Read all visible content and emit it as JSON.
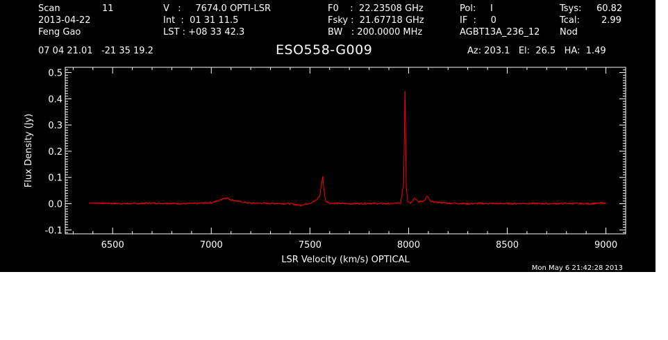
{
  "header": {
    "col1": {
      "scan_label": "Scan",
      "scan_value": "11",
      "date": "2013-04-22",
      "observer": "Feng Gao"
    },
    "col2": {
      "v_line": "V   :     7674.0 OPTI-LSR",
      "int_line": "Int  :  01 31 11.5",
      "lst_line": "LST : +08 33 42.3"
    },
    "col3": {
      "f0_line": "F0    :  22.23508 GHz",
      "fsky_line": "Fsky :  21.67718 GHz",
      "bw_line": "BW   : 200.0000 MHz"
    },
    "col4": {
      "pol_line": "Pol:     I",
      "if_line": "IF  :     0",
      "project": "AGBT13A_236_12"
    },
    "col5": {
      "tsys_label": "Tsys:",
      "tsys_value": "60.82",
      "tcal_label": "Tcal:",
      "tcal_value": "2.99",
      "mode": "Nod"
    },
    "coords": "07 04 21.01   -21 35 19.2",
    "source": "ESO558-G009",
    "azelha": "Az: 203.1   El:  26.5   HA:  1.49"
  },
  "timestamp": "Mon May  6 21:42:28 2013",
  "chart_data": {
    "type": "line",
    "title": "ESO558-G009",
    "xlabel": "LSR Velocity (km/s) OPTICAL",
    "ylabel": "Flux Density (Jy)",
    "xlim": [
      6260,
      9100
    ],
    "ylim": [
      -0.115,
      0.52
    ],
    "xticks": [
      6500,
      7000,
      7500,
      8000,
      8500,
      9000
    ],
    "yticks": [
      -0.1,
      0.0,
      0.1,
      0.2,
      0.3,
      0.4,
      0.5
    ],
    "ytick_labels": [
      "-0.1",
      "0.0",
      "0.1",
      "0.2",
      "0.3",
      "0.4",
      "0.5"
    ],
    "grid": false,
    "series": [
      {
        "color": "#ff0000",
        "x": [
          6380,
          6500,
          6600,
          6700,
          6800,
          6900,
          7000,
          7040,
          7060,
          7080,
          7100,
          7140,
          7200,
          7300,
          7400,
          7450,
          7500,
          7530,
          7550,
          7565,
          7572,
          7580,
          7600,
          7700,
          7800,
          7900,
          7960,
          7975,
          7982,
          7988,
          7995,
          8010,
          8030,
          8050,
          8080,
          8095,
          8110,
          8200,
          8300,
          8400,
          8500,
          8600,
          8700,
          8800,
          8900,
          9000
        ],
        "y": [
          0.003,
          0.001,
          0.0,
          0.002,
          0.001,
          0.0,
          0.004,
          0.012,
          0.02,
          0.022,
          0.015,
          0.008,
          0.002,
          0.001,
          0.0,
          -0.006,
          0.002,
          0.012,
          0.03,
          0.105,
          0.045,
          0.01,
          0.002,
          0.0,
          0.001,
          0.0,
          0.002,
          0.08,
          0.43,
          0.07,
          0.01,
          0.003,
          0.022,
          0.006,
          0.012,
          0.03,
          0.008,
          0.002,
          0.0,
          0.001,
          0.0,
          0.001,
          0.0,
          0.001,
          0.0,
          0.002
        ]
      }
    ]
  }
}
